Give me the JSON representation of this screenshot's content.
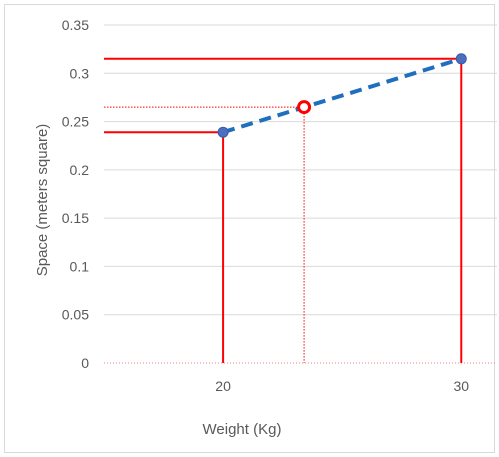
{
  "chart_data": {
    "type": "line",
    "title": "",
    "xlabel": "Weight (Kg)",
    "ylabel": "Space (meters square)",
    "xlim": [
      15,
      31.5
    ],
    "ylim": [
      0,
      0.35
    ],
    "x_ticks": [
      20,
      30
    ],
    "y_ticks": [
      0,
      0.05,
      0.1,
      0.15,
      0.2,
      0.25,
      0.3,
      0.35
    ],
    "y_tick_labels": [
      "0",
      "0.05",
      "0.1",
      "0.15",
      "0.2",
      "0.25",
      "0.3",
      "0.35"
    ],
    "grid": true,
    "known_points": [
      {
        "x": 20,
        "y": 0.239
      },
      {
        "x": 30,
        "y": 0.315
      }
    ],
    "interpolated_point": {
      "x": 23.4,
      "y": 0.265
    },
    "colors": {
      "reference_lines": "#ff0000",
      "interpolation_line": "#1f6fbf",
      "known_point_fill": "#4a6fbf",
      "interpolated_point_stroke": "#ff0000",
      "grid": "#d9d9d9",
      "tick_text": "#595959"
    }
  }
}
